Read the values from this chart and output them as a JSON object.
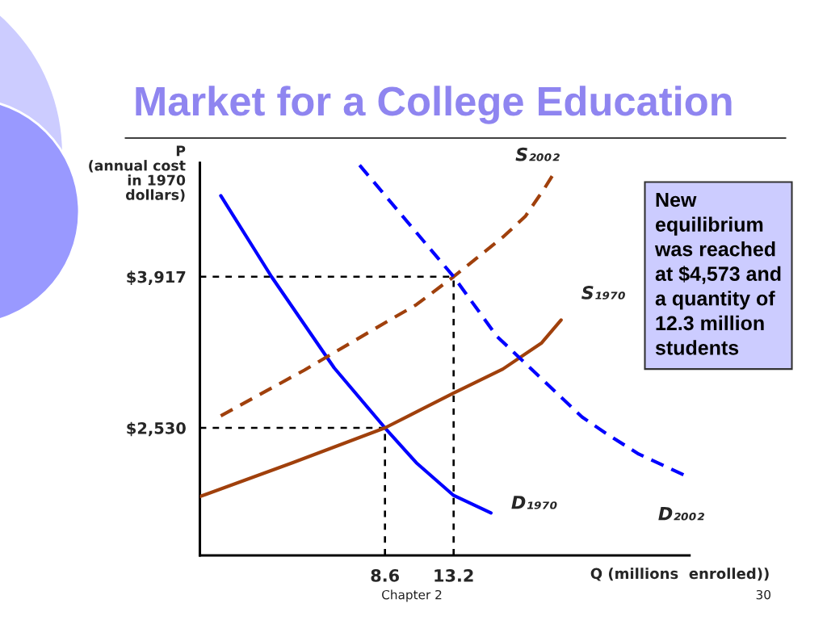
{
  "chart_data": {
    "type": "line",
    "title": "Market for a College Education",
    "ylabel": "P\n(annual cost\nin 1970\ndollars)",
    "xlabel": "Q (millions  enrolled))",
    "series": [
      {
        "name": "D₁₉₇₀",
        "color": "#0000ff",
        "line_style": "solid",
        "x": [
          -2.4,
          1.0,
          5.2,
          8.6,
          10.7,
          13.2,
          15.7
        ],
        "values": [
          4660,
          3917,
          3080,
          2530,
          2210,
          1910,
          1750
        ]
      },
      {
        "name": "S₁₉₇₀",
        "color": "#a0400c",
        "line_style": "solid",
        "x": [
          -3.8,
          2.4,
          8.6,
          13.2,
          16.5,
          19.1,
          20.4
        ],
        "values": [
          1900,
          2210,
          2530,
          2850,
          3070,
          3310,
          3520
        ]
      },
      {
        "name": "S₂₀₀₂",
        "color": "#a0400c",
        "line_style": "dashed",
        "x": [
          -2.4,
          3.2,
          8.8,
          10.7,
          13.2,
          16.5,
          18.0,
          19.3,
          19.8
        ],
        "values": [
          2640,
          3060,
          3510,
          3660,
          3917,
          4280,
          4470,
          4730,
          4840
        ]
      },
      {
        "name": "D₂₀₀₂",
        "color": "#0000ff",
        "line_style": "dashed",
        "x": [
          6.9,
          13.2,
          16.1,
          21.8,
          23.4,
          25.6,
          28.6
        ],
        "values": [
          4940,
          3917,
          3370,
          2630,
          2480,
          2290,
          2100
        ]
      }
    ],
    "xlim": [
      -3.8,
      29
    ],
    "ylim": [
      1360,
      4960
    ],
    "xticks": [
      8.6,
      13.2
    ],
    "yticks": [
      {
        "value": 2530,
        "label": "$2,530"
      },
      {
        "value": 3917,
        "label": "$3,917"
      }
    ],
    "ref_lines": [
      {
        "axis": "y",
        "value": 2530,
        "color": "#000000",
        "line_style": "dashed"
      },
      {
        "axis": "x",
        "value": 8.6,
        "color": "#000000",
        "line_style": "dashed"
      },
      {
        "axis": "y",
        "value": 3917,
        "color": "#000000",
        "line_style": "dashed"
      },
      {
        "axis": "x",
        "value": 13.2,
        "color": "#000000",
        "line_style": "dashed"
      }
    ],
    "annotations": [
      "New\nequilibrium\nwas reached\nat $4,573 and\na quantity of\n12.3 million\nstudents",
      "Chapter 2",
      "30"
    ]
  }
}
